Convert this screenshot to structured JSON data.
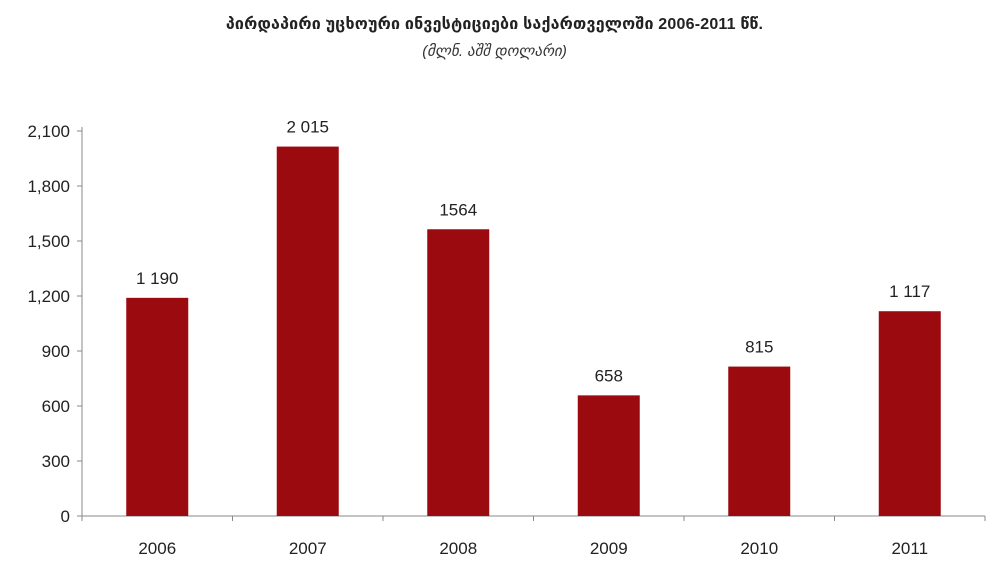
{
  "chart_data": {
    "type": "bar",
    "title": "პირდაპირი უცხოური ინვესტიციები საქართველოში 2006-2011 წწ.",
    "subtitle": "(მლნ. აშშ დოლარი)",
    "categories": [
      "2006",
      "2007",
      "2008",
      "2009",
      "2010",
      "2011"
    ],
    "values": [
      1190,
      2015,
      1564,
      658,
      815,
      1117
    ],
    "data_labels": [
      "1 190",
      "2 015",
      "1564",
      "658",
      "815",
      "1 117"
    ],
    "yticks": [
      0,
      300,
      600,
      900,
      1200,
      1500,
      1800,
      2100
    ],
    "ytick_labels": [
      "0",
      "300",
      "600",
      "900",
      "1,200",
      "1,500",
      "1,800",
      "2,100"
    ],
    "ylim": [
      0,
      2100
    ],
    "xlabel": "",
    "ylabel": "",
    "grid": false,
    "bar_color": "#9b0a0f"
  }
}
